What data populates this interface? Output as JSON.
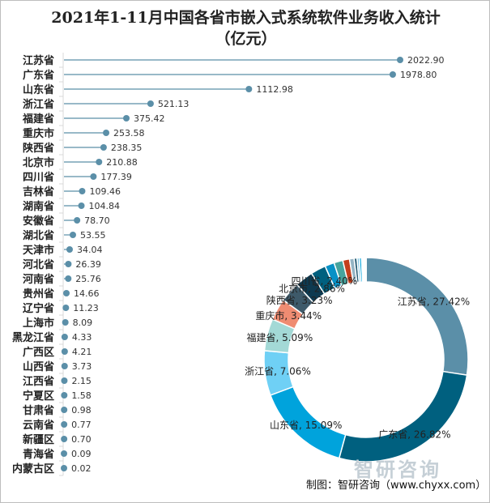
{
  "chart_data": [
    {
      "type": "lollipop",
      "title": "2021年1-11月中国各省市嵌入式系统软件业务收入统计",
      "subtitle": "（亿元）",
      "categories": [
        "江苏省",
        "广东省",
        "山东省",
        "浙江省",
        "福建省",
        "重庆市",
        "陕西省",
        "北京市",
        "四川省",
        "吉林省",
        "湖南省",
        "安徽省",
        "湖北省",
        "天津市",
        "河北省",
        "河南省",
        "贵州省",
        "辽宁省",
        "上海市",
        "黑龙江省",
        "广西区",
        "山西省",
        "江西省",
        "宁夏区",
        "甘肃省",
        "云南省",
        "新疆区",
        "青海省",
        "内蒙古区"
      ],
      "values": [
        2022.9,
        1978.8,
        1112.98,
        521.13,
        375.42,
        253.58,
        238.35,
        210.88,
        177.39,
        109.46,
        104.84,
        78.7,
        53.55,
        34.04,
        26.39,
        25.76,
        14.66,
        11.23,
        8.09,
        4.33,
        4.21,
        3.73,
        2.15,
        1.58,
        0.98,
        0.77,
        0.7,
        0.09,
        0.02
      ],
      "value_labels": [
        "2022.90",
        "1978.80",
        "1112.98",
        "521.13",
        "375.42",
        "253.58",
        "238.35",
        "210.88",
        "177.39",
        "109.46",
        "104.84",
        "78.70",
        "53.55",
        "34.04",
        "26.39",
        "25.76",
        "14.66",
        "11.23",
        "8.09",
        "4.33",
        "4.21",
        "3.73",
        "2.15",
        "1.58",
        "0.98",
        "0.77",
        "0.70",
        "0.09",
        "0.02"
      ],
      "color": "#5b8fa8",
      "xlim": [
        0,
        2022.9
      ]
    },
    {
      "type": "donut",
      "slice_labels": [
        "江苏省, 27.42%",
        "广东省, 26.82%",
        "山东省, 15.09%",
        "浙江省, 7.06%",
        "福建省, 5.09%",
        "重庆市, 3.44%",
        "陕西省, 3.23%",
        "北京市, 2.86%",
        "四川省, 2.40%"
      ],
      "colors": [
        "#5b8fa8",
        "#00607f",
        "#00a3dc",
        "#6fd0f5",
        "#a3d9d6",
        "#ef8c72",
        "#3e5a6a",
        "#0e3a50",
        "#00607f",
        "#0891c6",
        "#46a39d",
        "#c43f1c",
        "#94b4c4",
        "#2a5f77",
        "#7fc6e3",
        "#00a3dc",
        "#9fd2e0",
        "#5b8fa8",
        "#00607f",
        "#00a3dc",
        "#6fd0f5",
        "#a3d9d6",
        "#ef8c72",
        "#3e5a6a",
        "#0e3a50",
        "#00607f",
        "#0891c6",
        "#46a39d",
        "#c43f1c"
      ]
    }
  ],
  "watermark": "智研咨询",
  "source": "制图：智研咨询（www.chyxx.com）"
}
